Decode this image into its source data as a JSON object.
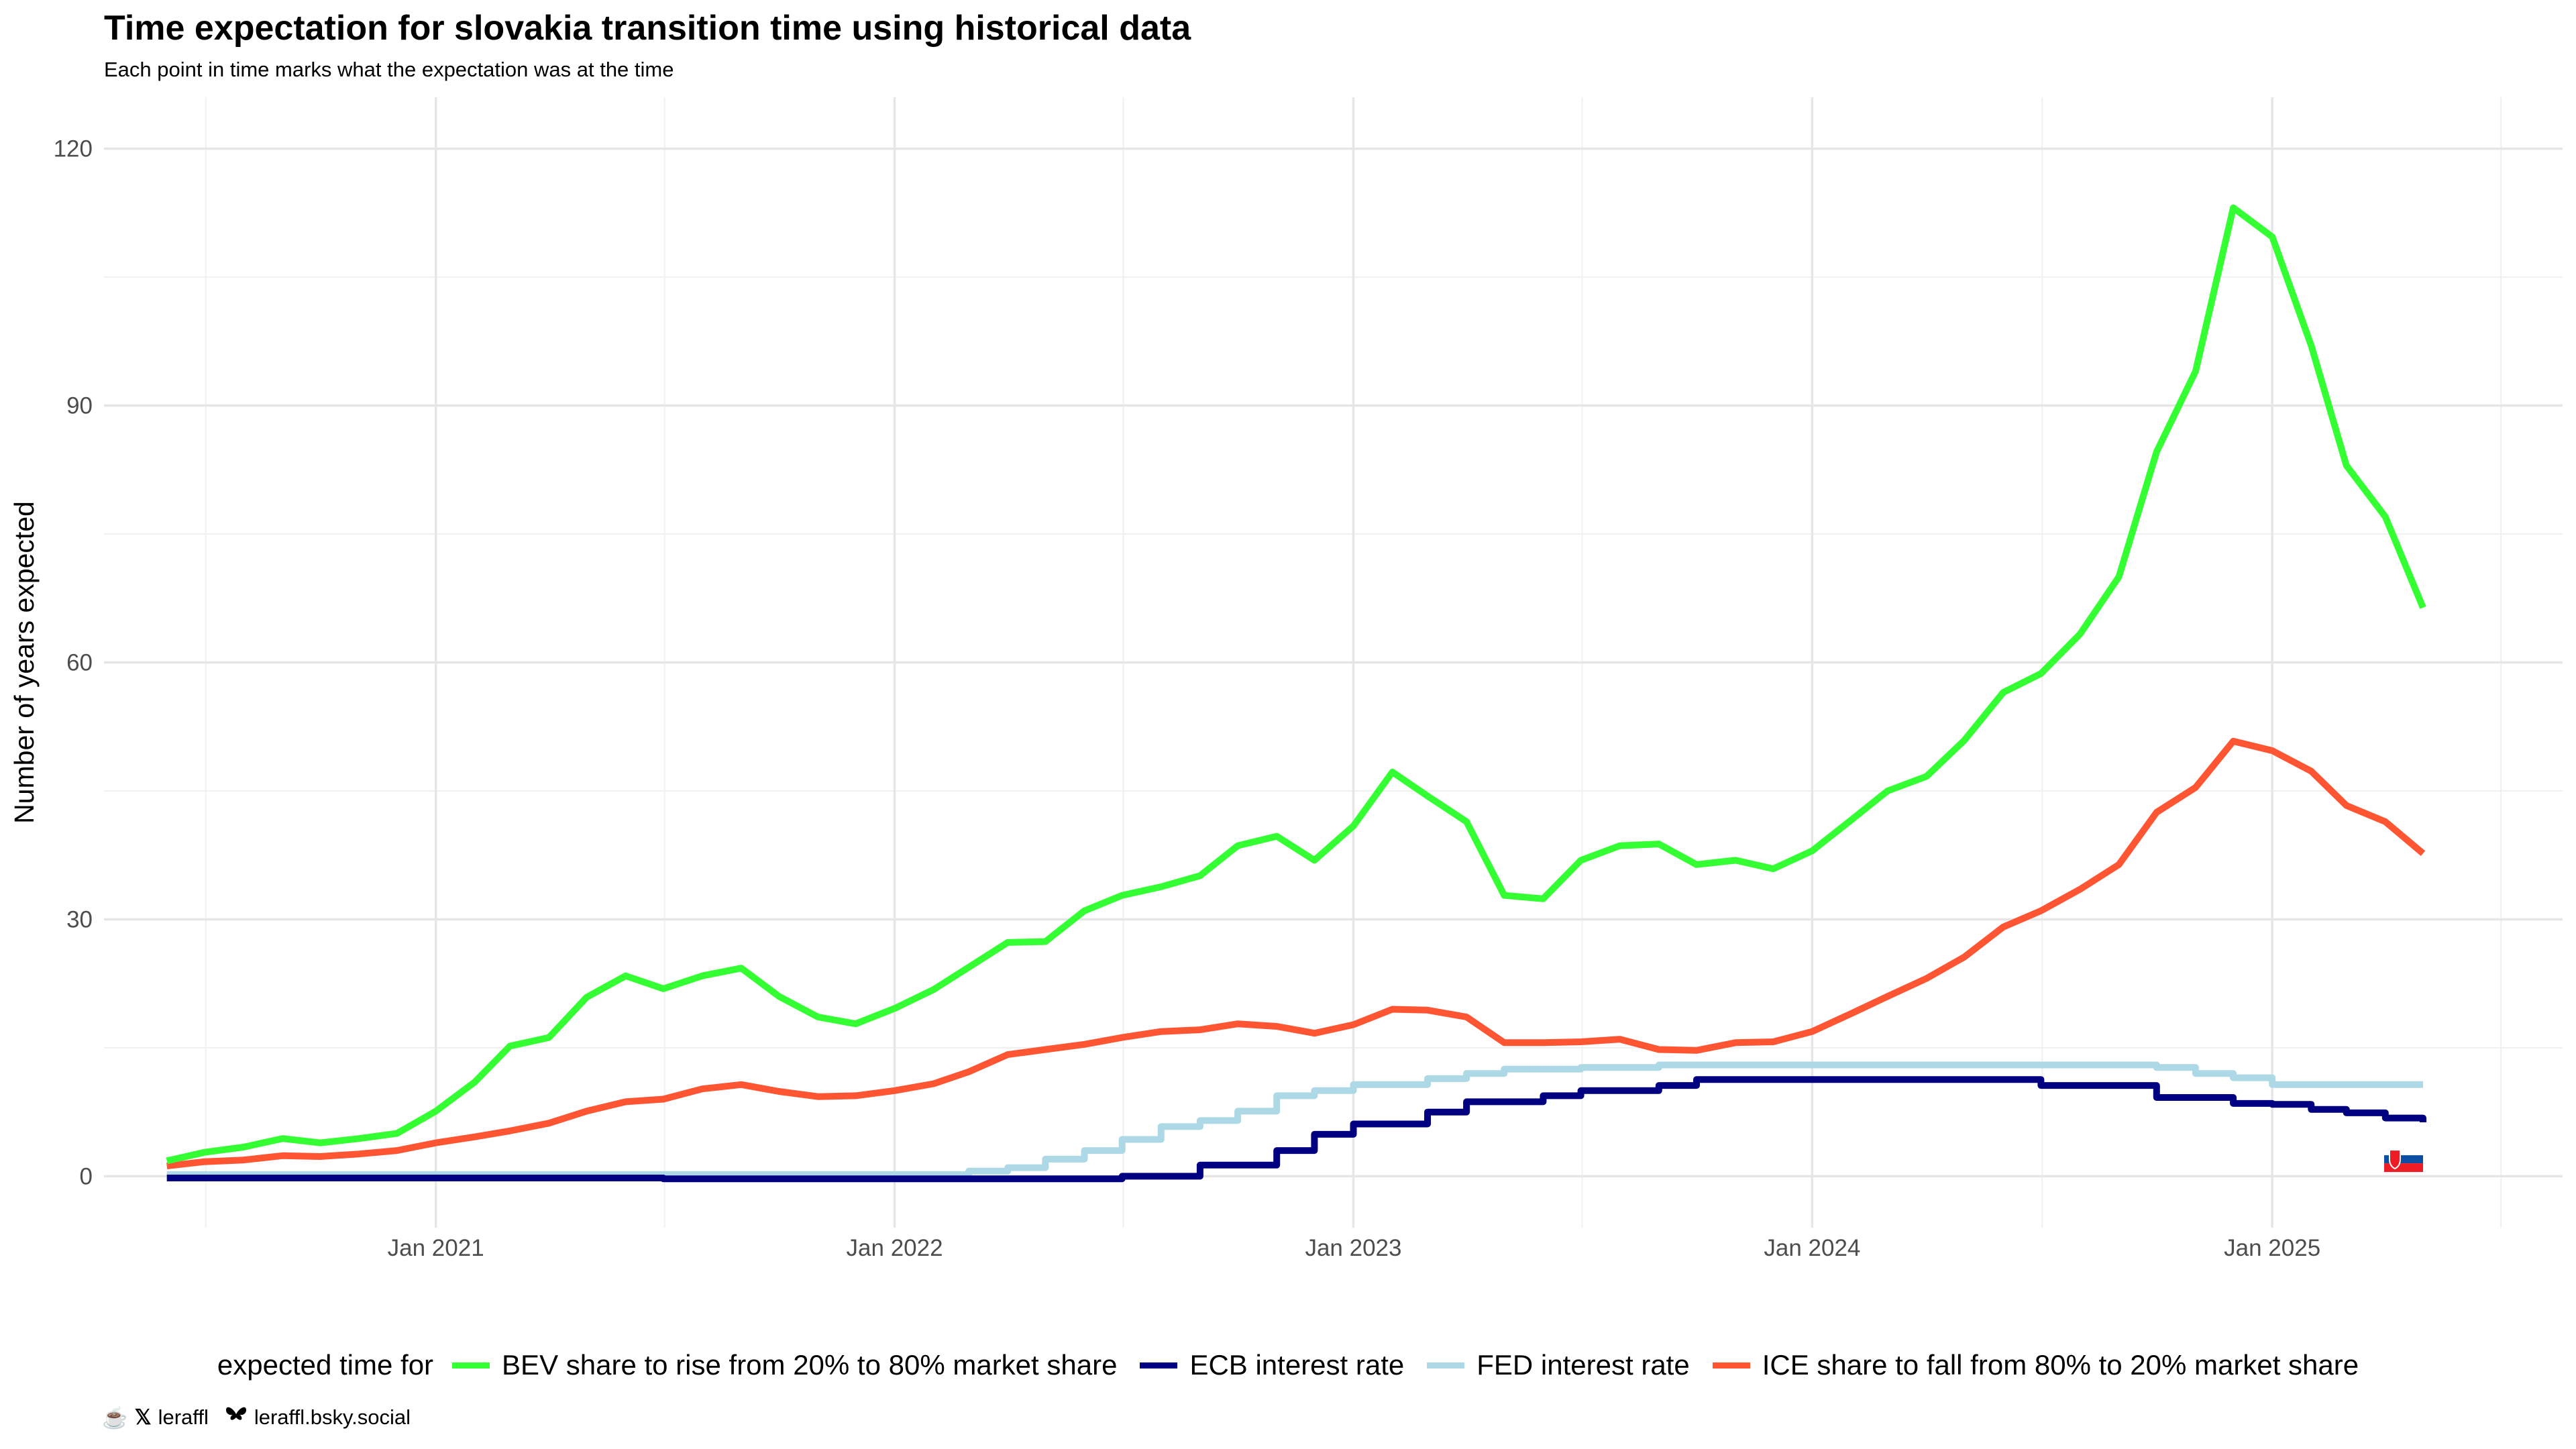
{
  "chart_data": {
    "type": "line",
    "title": "Time expectation for slovakia transition time using historical data",
    "subtitle": "Each point in time marks what the expectation was at the time",
    "xlabel": "",
    "ylabel": "Number of years expected",
    "ylim": [
      -6,
      126
    ],
    "xlim": [
      "2020-04-12",
      "2025-08-20"
    ],
    "yticks": [
      0,
      30,
      60,
      90,
      120
    ],
    "xticks": [
      "2021-01-01",
      "2022-01-01",
      "2023-01-01",
      "2024-01-01",
      "2025-01-01"
    ],
    "xtick_labels": [
      "Jan 2021",
      "Jan 2022",
      "Jan 2023",
      "Jan 2024",
      "Jan 2025"
    ],
    "grid": true,
    "legend_position": "bottom",
    "legend_title": "expected time for",
    "series": [
      {
        "name": "BEV share to rise from 20% to 80% market share",
        "color": "#33ff33",
        "shape": "linear",
        "x": [
          "2020-06-01",
          "2020-07-01",
          "2020-08-01",
          "2020-09-01",
          "2020-10-01",
          "2020-11-01",
          "2020-12-01",
          "2021-01-01",
          "2021-02-01",
          "2021-03-01",
          "2021-04-01",
          "2021-05-01",
          "2021-06-01",
          "2021-07-01",
          "2021-08-01",
          "2021-09-01",
          "2021-10-01",
          "2021-11-01",
          "2021-12-01",
          "2022-01-01",
          "2022-02-01",
          "2022-03-01",
          "2022-04-01",
          "2022-05-01",
          "2022-06-01",
          "2022-07-01",
          "2022-08-01",
          "2022-09-01",
          "2022-10-01",
          "2022-11-01",
          "2022-12-01",
          "2023-01-01",
          "2023-02-01",
          "2023-03-01",
          "2023-04-01",
          "2023-05-01",
          "2023-06-01",
          "2023-07-01",
          "2023-08-01",
          "2023-09-01",
          "2023-10-01",
          "2023-11-01",
          "2023-12-01",
          "2024-01-01",
          "2024-02-01",
          "2024-03-01",
          "2024-04-01",
          "2024-05-01",
          "2024-06-01",
          "2024-07-01",
          "2024-08-01",
          "2024-09-01",
          "2024-10-01",
          "2024-11-01",
          "2024-12-01",
          "2025-01-01",
          "2025-02-01",
          "2025-03-01",
          "2025-04-01",
          "2025-05-01"
        ],
        "y": [
          1.8,
          2.8,
          3.4,
          4.4,
          3.9,
          4.4,
          5.0,
          7.6,
          11.0,
          15.2,
          16.2,
          20.9,
          23.4,
          21.9,
          23.4,
          24.3,
          21.0,
          18.6,
          17.8,
          19.6,
          21.8,
          24.4,
          27.3,
          27.4,
          31.0,
          32.8,
          33.8,
          35.1,
          38.6,
          39.7,
          36.9,
          40.9,
          47.2,
          44.4,
          41.4,
          32.8,
          32.4,
          36.9,
          38.6,
          38.8,
          36.4,
          36.9,
          35.9,
          38.0,
          41.6,
          45.0,
          46.7,
          50.9,
          56.5,
          58.7,
          63.3,
          70.0,
          84.6,
          94.0,
          113.1,
          109.7,
          97.0,
          83.0,
          77.0,
          66.4
        ]
      },
      {
        "name": "ECB interest rate",
        "color": "#000080",
        "shape": "step",
        "x": [
          "2020-06-01",
          "2021-07-01",
          "2022-07-01",
          "2022-09-01",
          "2022-11-01",
          "2022-12-01",
          "2023-01-01",
          "2023-03-01",
          "2023-04-01",
          "2023-06-01",
          "2023-07-01",
          "2023-09-01",
          "2023-10-01",
          "2024-01-01",
          "2024-06-01",
          "2024-07-01",
          "2024-09-01",
          "2024-10-01",
          "2024-12-01",
          "2025-01-01",
          "2025-02-01",
          "2025-03-01",
          "2025-04-01",
          "2025-05-01"
        ],
        "y": [
          -0.2,
          -0.3,
          0.0,
          1.3,
          3.0,
          4.9,
          6.1,
          7.5,
          8.7,
          9.4,
          10.0,
          10.6,
          11.3,
          11.3,
          11.3,
          10.6,
          10.6,
          9.2,
          8.5,
          8.4,
          7.8,
          7.4,
          6.8,
          6.3
        ]
      },
      {
        "name": "FED interest rate",
        "color": "#add8e6",
        "shape": "step",
        "x": [
          "2020-06-01",
          "2021-03-01",
          "2021-12-01",
          "2022-03-01",
          "2022-04-01",
          "2022-05-01",
          "2022-06-01",
          "2022-07-01",
          "2022-08-01",
          "2022-09-01",
          "2022-10-01",
          "2022-11-01",
          "2022-12-01",
          "2023-01-01",
          "2023-03-01",
          "2023-04-01",
          "2023-05-01",
          "2023-07-01",
          "2023-09-01",
          "2024-01-01",
          "2024-09-01",
          "2024-10-01",
          "2024-11-01",
          "2024-12-01",
          "2025-01-01",
          "2025-05-01"
        ],
        "y": [
          0.2,
          0.2,
          0.2,
          0.6,
          1.0,
          2.0,
          3.0,
          4.3,
          5.8,
          6.5,
          7.6,
          9.4,
          10.0,
          10.7,
          11.4,
          12.0,
          12.5,
          12.7,
          13.0,
          13.0,
          13.0,
          12.7,
          12.0,
          11.5,
          10.7,
          10.7
        ]
      },
      {
        "name": "ICE share to fall from 80% to 20% market share",
        "color": "#ff5533",
        "shape": "linear",
        "x": [
          "2020-06-01",
          "2020-07-01",
          "2020-08-01",
          "2020-09-01",
          "2020-10-01",
          "2020-11-01",
          "2020-12-01",
          "2021-01-01",
          "2021-02-01",
          "2021-03-01",
          "2021-04-01",
          "2021-05-01",
          "2021-06-01",
          "2021-07-01",
          "2021-08-01",
          "2021-09-01",
          "2021-10-01",
          "2021-11-01",
          "2021-12-01",
          "2022-01-01",
          "2022-02-01",
          "2022-03-01",
          "2022-04-01",
          "2022-05-01",
          "2022-06-01",
          "2022-07-01",
          "2022-08-01",
          "2022-09-01",
          "2022-10-01",
          "2022-11-01",
          "2022-12-01",
          "2023-01-01",
          "2023-02-01",
          "2023-03-01",
          "2023-04-01",
          "2023-05-01",
          "2023-06-01",
          "2023-07-01",
          "2023-08-01",
          "2023-09-01",
          "2023-10-01",
          "2023-11-01",
          "2023-12-01",
          "2024-01-01",
          "2024-02-01",
          "2024-03-01",
          "2024-04-01",
          "2024-05-01",
          "2024-06-01",
          "2024-07-01",
          "2024-08-01",
          "2024-09-01",
          "2024-10-01",
          "2024-11-01",
          "2024-12-01",
          "2025-01-01",
          "2025-02-01",
          "2025-03-01",
          "2025-04-01",
          "2025-05-01"
        ],
        "y": [
          1.2,
          1.7,
          1.9,
          2.4,
          2.3,
          2.6,
          3.0,
          3.9,
          4.6,
          5.3,
          6.2,
          7.6,
          8.7,
          9.0,
          10.2,
          10.7,
          9.9,
          9.3,
          9.4,
          10.0,
          10.8,
          12.2,
          14.2,
          14.8,
          15.4,
          16.2,
          16.9,
          17.1,
          17.8,
          17.5,
          16.7,
          17.7,
          19.5,
          19.4,
          18.6,
          15.6,
          15.6,
          15.7,
          16.0,
          14.8,
          14.7,
          15.6,
          15.7,
          16.9,
          19.0,
          21.0,
          23.1,
          25.6,
          29.1,
          31.0,
          33.5,
          36.4,
          42.5,
          45.4,
          50.8,
          49.7,
          47.3,
          43.3,
          41.4,
          37.7
        ]
      }
    ],
    "marker": {
      "x": "2025-05-01",
      "y": 1.2,
      "icon": "slovakia-flag-icon"
    }
  },
  "credits": {
    "handle": "leraffl",
    "bsky": "leraffl.bsky.social",
    "icons": [
      "coffee-cup-icon",
      "x-logo-icon",
      "butterfly-icon"
    ]
  }
}
